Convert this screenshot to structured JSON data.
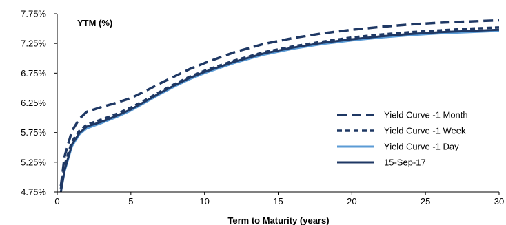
{
  "chart_data": {
    "type": "line",
    "title": "",
    "ylabel": "YTM (%)",
    "xlabel": "Term to Maturity (years)",
    "xlim": [
      0,
      30
    ],
    "ylim": [
      4.75,
      7.75
    ],
    "x_ticks": [
      0,
      5,
      10,
      15,
      20,
      25,
      30
    ],
    "x_tick_labels": [
      "0",
      "5",
      "10",
      "15",
      "20",
      "25",
      "30"
    ],
    "y_ticks": [
      4.75,
      5.25,
      5.75,
      6.25,
      6.75,
      7.25,
      7.75
    ],
    "y_tick_labels": [
      "4.75%",
      "5.25%",
      "5.75%",
      "6.25%",
      "6.75%",
      "7.25%",
      "7.75%"
    ],
    "grid": false,
    "legend_position": "right",
    "series": [
      {
        "name": "Yield Curve -1 Month",
        "color": "#1f3864",
        "style": "long-dash",
        "x": [
          0.25,
          0.5,
          1,
          1.5,
          2,
          3,
          4,
          5,
          6,
          7,
          8,
          9,
          10,
          12,
          14,
          16,
          18,
          20,
          22,
          24,
          26,
          28,
          30
        ],
        "y": [
          4.85,
          5.35,
          5.78,
          5.98,
          6.1,
          6.18,
          6.25,
          6.33,
          6.45,
          6.58,
          6.7,
          6.82,
          6.92,
          7.1,
          7.24,
          7.34,
          7.42,
          7.48,
          7.53,
          7.57,
          7.6,
          7.62,
          7.64
        ]
      },
      {
        "name": "Yield Curve -1 Week",
        "color": "#1f3864",
        "style": "short-dash",
        "x": [
          0.25,
          0.5,
          1,
          1.5,
          2,
          3,
          4,
          5,
          6,
          7,
          8,
          9,
          10,
          12,
          14,
          16,
          18,
          20,
          22,
          24,
          26,
          28,
          30
        ],
        "y": [
          4.8,
          5.2,
          5.6,
          5.78,
          5.88,
          5.97,
          6.06,
          6.17,
          6.3,
          6.44,
          6.57,
          6.69,
          6.79,
          6.96,
          7.1,
          7.2,
          7.28,
          7.35,
          7.4,
          7.44,
          7.47,
          7.5,
          7.52
        ]
      },
      {
        "name": "Yield Curve -1 Day",
        "color": "#5b9bd5",
        "style": "solid",
        "x": [
          0.25,
          0.5,
          1,
          1.5,
          2,
          3,
          4,
          5,
          6,
          7,
          8,
          9,
          10,
          12,
          14,
          16,
          18,
          20,
          22,
          24,
          26,
          28,
          30
        ],
        "y": [
          4.75,
          5.1,
          5.52,
          5.72,
          5.82,
          5.91,
          6.01,
          6.12,
          6.26,
          6.4,
          6.53,
          6.65,
          6.75,
          6.92,
          7.06,
          7.16,
          7.24,
          7.3,
          7.35,
          7.39,
          7.42,
          7.44,
          7.46
        ]
      },
      {
        "name": "15-Sep-17",
        "color": "#1f3864",
        "style": "solid",
        "x": [
          0.25,
          0.5,
          1,
          1.5,
          2,
          3,
          4,
          5,
          6,
          7,
          8,
          9,
          10,
          12,
          14,
          16,
          18,
          20,
          22,
          24,
          26,
          28,
          30
        ],
        "y": [
          4.75,
          5.12,
          5.55,
          5.74,
          5.85,
          5.93,
          6.03,
          6.14,
          6.28,
          6.42,
          6.55,
          6.67,
          6.77,
          6.94,
          7.08,
          7.18,
          7.26,
          7.32,
          7.37,
          7.41,
          7.44,
          7.46,
          7.48
        ]
      }
    ]
  }
}
